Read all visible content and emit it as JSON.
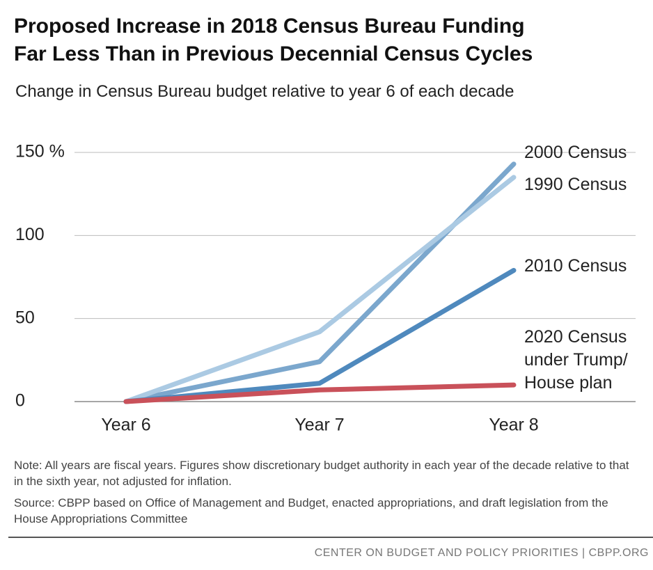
{
  "chart_data": {
    "type": "line",
    "title": [
      "Proposed Increase in 2018 Census Bureau Funding",
      "Far Less Than in Previous Decennial Census Cycles"
    ],
    "subtitle": "Change in Census Bureau budget relative to year 6 of each decade",
    "categories": [
      "Year 6",
      "Year 7",
      "Year 8"
    ],
    "series": [
      {
        "name": "2000 Census",
        "color": "#7ba7cd",
        "values": [
          0,
          24,
          143
        ]
      },
      {
        "name": "1990 Census",
        "color": "#abcae3",
        "values": [
          0,
          42,
          135
        ]
      },
      {
        "name": "2010 Census",
        "color": "#4f89bd",
        "values": [
          0,
          11,
          79
        ]
      },
      {
        "name": "2020 Census under Trump/ House plan",
        "color": "#c9515a",
        "values": [
          0,
          7,
          10
        ]
      }
    ],
    "ylim": [
      0,
      150
    ],
    "yticks": [
      0,
      50,
      100,
      {
        "value": 150,
        "label": "150 %"
      }
    ],
    "grid": true,
    "note": "Note: All years are fiscal years.  Figures show discretionary budget authority in each year of the decade relative to that in the sixth year, not adjusted for inflation.",
    "source": "Source: CBPP based on Office of Management and Budget, enacted appropriations, and draft legislation from the House Appropriations Committee",
    "footer": "CENTER ON BUDGET AND POLICY PRIORITIES | CBPP.ORG"
  }
}
